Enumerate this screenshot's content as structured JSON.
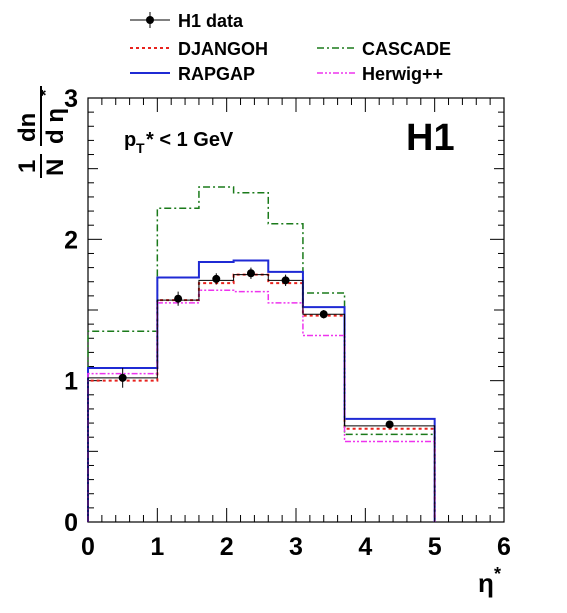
{
  "chart_data": {
    "type": "line",
    "title": "",
    "experiment_label": "H1",
    "cut_label": {
      "main": "p",
      "sub": "T",
      "rest": "* < 1 GeV"
    },
    "xlabel": {
      "main": "η",
      "sup": "*"
    },
    "ylabel": {
      "frac_num": "1",
      "frac_den": "N",
      "num": "dn",
      "den_main": "d η",
      "den_sup": "*"
    },
    "xlim": [
      0,
      6
    ],
    "ylim": [
      0,
      3
    ],
    "x_ticks": [
      "0",
      "1",
      "2",
      "3",
      "4",
      "5",
      "6"
    ],
    "y_ticks": [
      "0",
      "1",
      "2",
      "3"
    ],
    "bin_edges": [
      0,
      1.0,
      1.6,
      2.1,
      2.6,
      3.1,
      3.7,
      5.0
    ],
    "legend": [
      {
        "label": "H1 data",
        "series": "data"
      },
      {
        "label": "DJANGOH",
        "series": "djangoh"
      },
      {
        "label": "CASCADE",
        "series": "cascade"
      },
      {
        "label": "RAPGAP",
        "series": "rapgap"
      },
      {
        "label": "Herwig++",
        "series": "herwig"
      }
    ],
    "data": {
      "name": "H1 data",
      "x": [
        0.5,
        1.3,
        1.85,
        2.35,
        2.85,
        3.4,
        4.35
      ],
      "y": [
        1.02,
        1.58,
        1.72,
        1.76,
        1.71,
        1.47,
        0.69
      ],
      "err": [
        0.07,
        0.05,
        0.04,
        0.04,
        0.04,
        0.03,
        0.02
      ],
      "color": "#000000"
    },
    "series": [
      {
        "name": "DJANGOH",
        "key": "djangoh",
        "values": [
          1.0,
          1.57,
          1.69,
          1.75,
          1.69,
          1.46,
          0.66
        ],
        "color": "#e8221d",
        "dash": "3,3",
        "width": 2
      },
      {
        "name": "CASCADE",
        "key": "cascade",
        "values": [
          1.35,
          2.22,
          2.37,
          2.33,
          2.11,
          1.62,
          0.62
        ],
        "color": "#1a7a1a",
        "dash": "7,3,2,3",
        "width": 1.5
      },
      {
        "name": "RAPGAP",
        "key": "rapgap",
        "values": [
          1.09,
          1.73,
          1.84,
          1.85,
          1.77,
          1.52,
          0.73
        ],
        "color": "#1f2ad4",
        "dash": "",
        "width": 2
      },
      {
        "name": "Herwig++",
        "key": "herwig",
        "values": [
          1.05,
          1.55,
          1.64,
          1.63,
          1.55,
          1.32,
          0.57
        ],
        "color": "#ee33ee",
        "dash": "6,2,2,2,2,2",
        "width": 1.5
      },
      {
        "name": "",
        "key": "thin",
        "values": [
          1.02,
          1.57,
          1.71,
          1.75,
          1.71,
          1.47,
          0.68
        ],
        "color": "#000000",
        "dash": "",
        "width": 1
      }
    ]
  }
}
